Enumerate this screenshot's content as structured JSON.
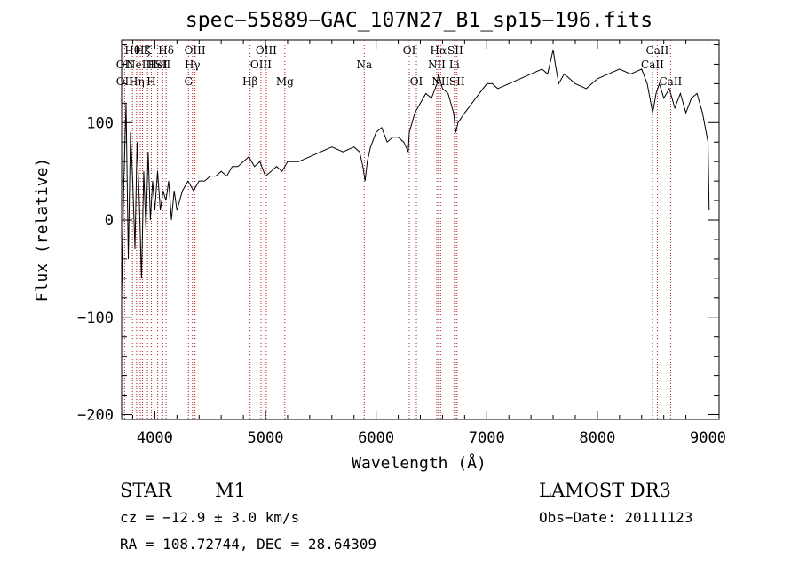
{
  "chart_data": {
    "type": "line",
    "title": "spec−55889−GAC_107N27_B1_sp15−196.fits",
    "xlabel": "Wavelength (Å)",
    "ylabel": "Flux (relative)",
    "xlim": [
      3700,
      9100
    ],
    "ylim": [
      -205,
      185
    ],
    "x_ticks": [
      4000,
      5000,
      6000,
      7000,
      8000,
      9000
    ],
    "x_tick_labels": [
      "4000",
      "5000",
      "6000",
      "7000",
      "8000",
      "9000"
    ],
    "y_ticks": [
      -200,
      -100,
      0,
      100
    ],
    "y_tick_labels": [
      "−200",
      "−100",
      "0",
      "100"
    ],
    "grid": false,
    "line_color": "#000000",
    "marker_color": "#b22222",
    "series": [
      {
        "x": [
          3700,
          3720,
          3740,
          3760,
          3780,
          3800,
          3820,
          3840,
          3860,
          3880,
          3900,
          3920,
          3940,
          3960,
          3980,
          4000,
          4025,
          4050,
          4075,
          4100,
          4125,
          4150,
          4175,
          4200,
          4250,
          4300,
          4350,
          4400,
          4450,
          4500,
          4550,
          4600,
          4650,
          4700,
          4750,
          4800,
          4850,
          4900,
          4950,
          5000,
          5050,
          5100,
          5150,
          5200,
          5300,
          5400,
          5500,
          5600,
          5700,
          5800,
          5850,
          5880,
          5900,
          5920,
          5950,
          6000,
          6050,
          6100,
          6150,
          6200,
          6250,
          6290,
          6300,
          6350,
          6400,
          6450,
          6500,
          6550,
          6563,
          6600,
          6650,
          6700,
          6720,
          6740,
          6800,
          6900,
          7000,
          7050,
          7100,
          7200,
          7300,
          7400,
          7500,
          7550,
          7600,
          7620,
          7650,
          7700,
          7800,
          7900,
          8000,
          8100,
          8200,
          8300,
          8400,
          8450,
          8500,
          8530,
          8560,
          8600,
          8650,
          8700,
          8750,
          8800,
          8850,
          8900,
          8950,
          9000,
          9010
        ],
        "y": [
          -80,
          40,
          120,
          -40,
          90,
          40,
          -30,
          80,
          20,
          -60,
          50,
          -10,
          70,
          0,
          40,
          10,
          50,
          10,
          30,
          20,
          40,
          0,
          30,
          10,
          30,
          40,
          30,
          40,
          40,
          45,
          45,
          50,
          45,
          55,
          55,
          60,
          65,
          55,
          60,
          45,
          50,
          55,
          50,
          60,
          60,
          65,
          70,
          75,
          70,
          75,
          70,
          55,
          40,
          60,
          75,
          90,
          95,
          80,
          85,
          85,
          80,
          70,
          90,
          110,
          120,
          130,
          125,
          140,
          150,
          135,
          130,
          110,
          90,
          100,
          110,
          125,
          140,
          140,
          135,
          140,
          145,
          150,
          155,
          150,
          175,
          160,
          140,
          150,
          140,
          135,
          145,
          150,
          155,
          150,
          155,
          140,
          110,
          130,
          140,
          125,
          135,
          115,
          130,
          110,
          125,
          130,
          110,
          80,
          10
        ]
      }
    ],
    "line_markers": [
      {
        "x": 3727,
        "labels": [
          {
            "text": "OII",
            "row": 2
          },
          {
            "text": "OII",
            "row": 3
          }
        ]
      },
      {
        "x": 3798,
        "labels": [
          {
            "text": "Hθ",
            "row": 1
          }
        ]
      },
      {
        "x": 3835,
        "labels": [
          {
            "text": "Hη",
            "row": 3
          }
        ]
      },
      {
        "x": 3869,
        "labels": [
          {
            "text": "NeIII",
            "row": 2
          }
        ]
      },
      {
        "x": 3889,
        "labels": [
          {
            "text": "Hζ",
            "row": 1
          }
        ]
      },
      {
        "x": 3934,
        "labels": [
          {
            "text": "K",
            "row": 1
          }
        ]
      },
      {
        "x": 3968,
        "labels": [
          {
            "text": "H",
            "row": 3
          }
        ]
      },
      {
        "x": 4026,
        "labels": [
          {
            "text": "HeI",
            "row": 2
          }
        ]
      },
      {
        "x": 4072,
        "labels": [
          {
            "text": "SII",
            "row": 2
          }
        ]
      },
      {
        "x": 4102,
        "labels": [
          {
            "text": "Hδ",
            "row": 1
          }
        ]
      },
      {
        "x": 4304,
        "labels": [
          {
            "text": "G",
            "row": 3
          }
        ]
      },
      {
        "x": 4340,
        "labels": [
          {
            "text": "Hγ",
            "row": 2
          }
        ]
      },
      {
        "x": 4363,
        "labels": [
          {
            "text": "OIII",
            "row": 1
          }
        ]
      },
      {
        "x": 4861,
        "labels": [
          {
            "text": "Hβ",
            "row": 3
          }
        ]
      },
      {
        "x": 4959,
        "labels": [
          {
            "text": "OIII",
            "row": 2
          }
        ]
      },
      {
        "x": 5007,
        "labels": [
          {
            "text": "OIII",
            "row": 1
          }
        ]
      },
      {
        "x": 5175,
        "labels": [
          {
            "text": "Mg",
            "row": 3
          }
        ]
      },
      {
        "x": 5893,
        "labels": [
          {
            "text": "Na",
            "row": 2
          }
        ]
      },
      {
        "x": 6300,
        "labels": [
          {
            "text": "OI",
            "row": 1
          }
        ]
      },
      {
        "x": 6364,
        "labels": [
          {
            "text": "OI",
            "row": 3
          }
        ]
      },
      {
        "x": 6548,
        "labels": [
          {
            "text": "NII",
            "row": 2
          }
        ]
      },
      {
        "x": 6563,
        "labels": [
          {
            "text": "Hα",
            "row": 1
          }
        ]
      },
      {
        "x": 6583,
        "labels": [
          {
            "text": "NII",
            "row": 3
          }
        ]
      },
      {
        "x": 6707,
        "labels": [
          {
            "text": "Li",
            "row": 2
          }
        ]
      },
      {
        "x": 6716,
        "labels": [
          {
            "text": "SII",
            "row": 1
          }
        ]
      },
      {
        "x": 6731,
        "labels": [
          {
            "text": "SII",
            "row": 3
          }
        ]
      },
      {
        "x": 8498,
        "labels": [
          {
            "text": "CaII",
            "row": 2
          }
        ]
      },
      {
        "x": 8542,
        "labels": [
          {
            "text": "CaII",
            "row": 1
          }
        ]
      },
      {
        "x": 8662,
        "labels": [
          {
            "text": "CaII",
            "row": 3
          }
        ]
      }
    ]
  },
  "info": {
    "object_class": "STAR",
    "subclass": "M1",
    "survey": "LAMOST DR3",
    "cz": "cz = −12.9 ± 3.0 km/s",
    "obs_date": "Obs−Date: 20111123",
    "coords": "RA = 108.72744, DEC =  28.64309"
  }
}
